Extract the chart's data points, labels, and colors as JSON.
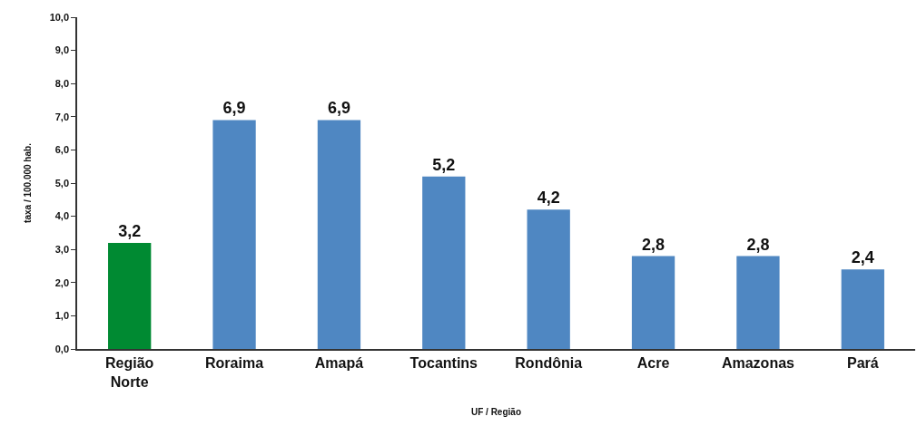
{
  "chart_data": {
    "type": "bar",
    "xlabel": "UF / Região",
    "ylabel": "taxa / 100.000 hab.",
    "categories": [
      "Região Norte",
      "Roraima",
      "Amapá",
      "Tocantins",
      "Rondônia",
      "Acre",
      "Amazonas",
      "Pará"
    ],
    "values": [
      3.2,
      6.9,
      6.9,
      5.2,
      4.2,
      2.8,
      2.8,
      2.4
    ],
    "colors": [
      "#008a32",
      "#4f87c2",
      "#4f87c2",
      "#4f87c2",
      "#4f87c2",
      "#4f87c2",
      "#4f87c2",
      "#4f87c2"
    ],
    "value_labels": [
      "3,2",
      "6,9",
      "6,9",
      "5,2",
      "4,2",
      "2,8",
      "2,8",
      "2,4"
    ],
    "ylim": [
      0,
      10
    ],
    "yticks": [
      {
        "value": 0,
        "label": "0,0"
      },
      {
        "value": 1,
        "label": "1,0"
      },
      {
        "value": 2,
        "label": "2,0"
      },
      {
        "value": 3,
        "label": "3,0"
      },
      {
        "value": 4,
        "label": "4,0"
      },
      {
        "value": 5,
        "label": "5,0"
      },
      {
        "value": 6,
        "label": "6,0"
      },
      {
        "value": 7,
        "label": "7,0"
      },
      {
        "value": 8,
        "label": "8,0"
      },
      {
        "value": 9,
        "label": "9,0"
      },
      {
        "value": 10,
        "label": "10,0"
      }
    ]
  }
}
